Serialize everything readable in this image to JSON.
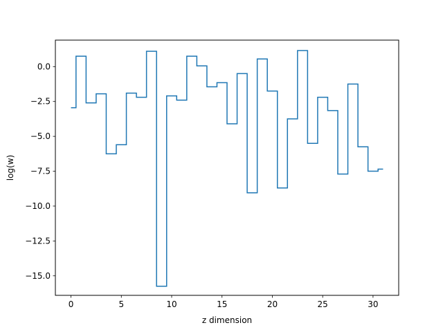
{
  "chart_data": {
    "type": "line",
    "drawstyle": "steps-mid",
    "xlabel": "z dimension",
    "ylabel": "log(w)",
    "xlim": [
      -1.55,
      32.55
    ],
    "ylim": [
      -16.4,
      1.9
    ],
    "xticks": [
      0,
      5,
      10,
      15,
      20,
      25,
      30
    ],
    "xtick_labels": [
      "0",
      "5",
      "10",
      "15",
      "20",
      "25",
      "30"
    ],
    "yticks": [
      0.0,
      -2.5,
      -5.0,
      -7.5,
      -10.0,
      -12.5,
      -15.0
    ],
    "ytick_labels": [
      "0.0",
      "−2.5",
      "−5.0",
      "−7.5",
      "−10.0",
      "−12.5",
      "−15.0"
    ],
    "grid": false,
    "series": [
      {
        "color": "#1f77b4",
        "x": [
          0,
          1,
          2,
          3,
          4,
          5,
          6,
          7,
          8,
          9,
          10,
          11,
          12,
          13,
          14,
          15,
          16,
          17,
          18,
          19,
          20,
          21,
          22,
          23,
          24,
          25,
          26,
          27,
          28,
          29,
          30,
          31
        ],
        "y": [
          -2.95,
          0.75,
          -2.6,
          -1.95,
          -6.25,
          -5.6,
          -1.9,
          -2.2,
          1.1,
          -15.75,
          -2.1,
          -2.4,
          0.75,
          0.05,
          -1.45,
          -1.15,
          -4.1,
          -0.5,
          -9.05,
          0.55,
          -1.75,
          -8.7,
          -3.75,
          1.15,
          -5.5,
          -2.2,
          -3.15,
          -7.7,
          -1.25,
          -5.75,
          -7.5,
          -7.35
        ]
      }
    ]
  }
}
